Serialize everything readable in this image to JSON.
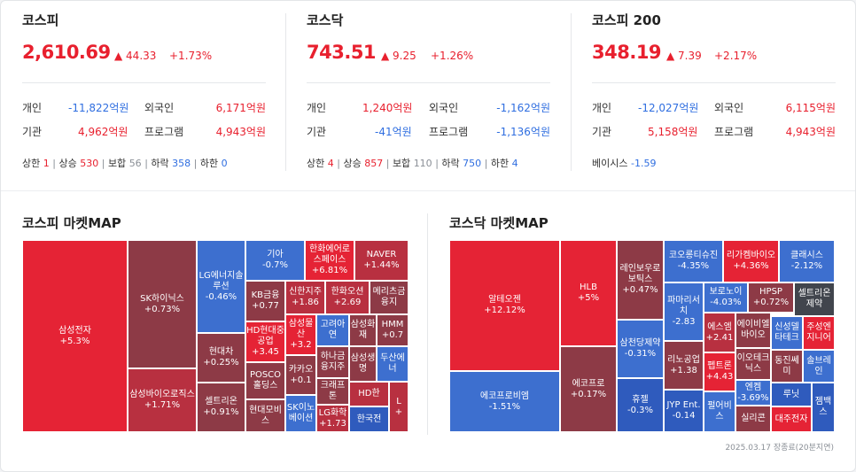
{
  "kospi": {
    "name": "코스피",
    "value": "2,610.69",
    "change": "▲ 44.33",
    "rate": "+1.73%",
    "indiv_label": "개인",
    "indiv": "-11,822억원",
    "foreign_label": "외국인",
    "foreign": "6,171억원",
    "inst_label": "기관",
    "inst": "4,962억원",
    "prog_label": "프로그램",
    "prog": "4,943억원",
    "s_upper_label": "상한",
    "s_upper": "1",
    "s_rise_label": "상승",
    "s_rise": "530",
    "s_flat_label": "보합",
    "s_flat": "56",
    "s_fall_label": "하락",
    "s_fall": "358",
    "s_lower_label": "하한",
    "s_lower": "0"
  },
  "kosdaq": {
    "name": "코스닥",
    "value": "743.51",
    "change": "▲ 9.25",
    "rate": "+1.26%",
    "indiv_label": "개인",
    "indiv": "1,240억원",
    "foreign_label": "외국인",
    "foreign": "-1,162억원",
    "inst_label": "기관",
    "inst": "-41억원",
    "prog_label": "프로그램",
    "prog": "-1,136억원",
    "s_upper_label": "상한",
    "s_upper": "4",
    "s_rise_label": "상승",
    "s_rise": "857",
    "s_flat_label": "보합",
    "s_flat": "110",
    "s_fall_label": "하락",
    "s_fall": "750",
    "s_lower_label": "하한",
    "s_lower": "4"
  },
  "kospi200": {
    "name": "코스피 200",
    "value": "348.19",
    "change": "▲ 7.39",
    "rate": "+2.17%",
    "indiv_label": "개인",
    "indiv": "-12,027억원",
    "foreign_label": "외국인",
    "foreign": "6,115억원",
    "inst_label": "기관",
    "inst": "5,158억원",
    "prog_label": "프로그램",
    "prog": "4,943억원",
    "basis_label": "베이시스",
    "basis": "-1.59"
  },
  "kospi_map": {
    "title": "코스피 마켓MAP",
    "tiles": [
      {
        "n": "삼성전자",
        "v": "+5.3%"
      },
      {
        "n": "SK하이닉스",
        "v": "+0.73%"
      },
      {
        "n": "삼성바이오로직스",
        "v": "+1.71%"
      },
      {
        "n": "LG에너지솔루션",
        "v": "-0.46%"
      },
      {
        "n": "현대차",
        "v": "+0.25%"
      },
      {
        "n": "셀트리온",
        "v": "+0.91%"
      },
      {
        "n": "기아",
        "v": "-0.7%"
      },
      {
        "n": "KB금융",
        "v": "+0.77"
      },
      {
        "n": "HD현대중공업",
        "v": "+3.45"
      },
      {
        "n": "POSCO홀딩스",
        "v": ""
      },
      {
        "n": "현대모비스",
        "v": ""
      },
      {
        "n": "한화에어로스페이스",
        "v": "+6.81%"
      },
      {
        "n": "신한지주",
        "v": "+1.86"
      },
      {
        "n": "삼성물산",
        "v": "+3.2"
      },
      {
        "n": "카카오",
        "v": "+0.1"
      },
      {
        "n": "SK이노베이션",
        "v": ""
      },
      {
        "n": "고려아연",
        "v": ""
      },
      {
        "n": "하나금융지주",
        "v": ""
      },
      {
        "n": "크래프톤",
        "v": ""
      },
      {
        "n": "LG화학",
        "v": "+1.73"
      },
      {
        "n": "한화오션",
        "v": "+2.69"
      },
      {
        "n": "삼성화재",
        "v": ""
      },
      {
        "n": "삼성생명",
        "v": ""
      },
      {
        "n": "NAVER",
        "v": "+1.44%"
      },
      {
        "n": "메리츠금융지",
        "v": ""
      },
      {
        "n": "HMM",
        "v": "+0.7"
      },
      {
        "n": "두산에너",
        "v": ""
      },
      {
        "n": "HD한",
        "v": ""
      },
      {
        "n": "한국전",
        "v": ""
      },
      {
        "n": "L",
        "v": "+"
      }
    ]
  },
  "kosdaq_map": {
    "title": "코스닥 마켓MAP",
    "tiles": [
      {
        "n": "알테오젠",
        "v": "+12.12%"
      },
      {
        "n": "에코프로비엠",
        "v": "-1.51%"
      },
      {
        "n": "HLB",
        "v": "+5%"
      },
      {
        "n": "에코프로",
        "v": "+0.17%"
      },
      {
        "n": "레인보우로보틱스",
        "v": "+0.47%"
      },
      {
        "n": "삼천당제약",
        "v": "-0.31%"
      },
      {
        "n": "휴젤",
        "v": "-0.3%"
      },
      {
        "n": "코오롱티슈진",
        "v": "-4.35%"
      },
      {
        "n": "파마리서치",
        "v": "-2.83"
      },
      {
        "n": "리노공업",
        "v": "+1.38"
      },
      {
        "n": "JYP Ent.",
        "v": "-0.14"
      },
      {
        "n": "리가켐바이오",
        "v": "+4.36%"
      },
      {
        "n": "보로노이",
        "v": "-4.03%"
      },
      {
        "n": "HPSP",
        "v": "+0.72%"
      },
      {
        "n": "클래시스",
        "v": "-2.12%"
      },
      {
        "n": "셀트리온제약",
        "v": ""
      },
      {
        "n": "에스엠",
        "v": "+2.41"
      },
      {
        "n": "펩트론",
        "v": "+4.43"
      },
      {
        "n": "펄어비스",
        "v": ""
      },
      {
        "n": "에이비엘바이오",
        "v": ""
      },
      {
        "n": "이오테크닉스",
        "v": ""
      },
      {
        "n": "엔켐",
        "v": "-3.69%"
      },
      {
        "n": "실리콘",
        "v": ""
      },
      {
        "n": "신성델타테크",
        "v": ""
      },
      {
        "n": "주성엔지니어",
        "v": ""
      },
      {
        "n": "동진쎄미",
        "v": ""
      },
      {
        "n": "솔브레인",
        "v": ""
      },
      {
        "n": "루닛",
        "v": ""
      },
      {
        "n": "대주전자",
        "v": ""
      },
      {
        "n": "젬백스",
        "v": ""
      }
    ]
  },
  "footer": "2025.03.17 장종료(20분지연)"
}
